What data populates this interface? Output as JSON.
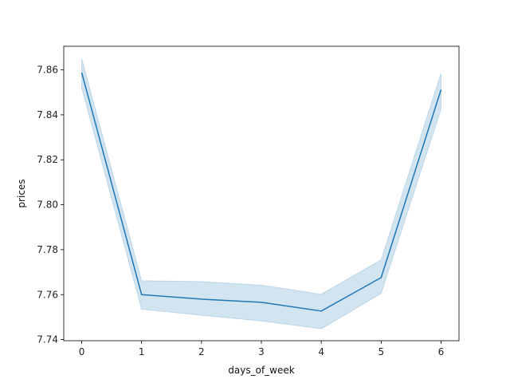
{
  "chart_data": {
    "type": "line",
    "title": "",
    "xlabel": "days_of_week",
    "ylabel": "prices",
    "xlim": [
      -0.3,
      6.3
    ],
    "ylim": [
      7.7395,
      7.8705
    ],
    "xticks": [
      0,
      1,
      2,
      3,
      4,
      5,
      6
    ],
    "yticks": [
      7.74,
      7.76,
      7.78,
      7.8,
      7.82,
      7.84,
      7.86
    ],
    "grid": false,
    "x": [
      0,
      1,
      2,
      3,
      4,
      5,
      6
    ],
    "series": [
      {
        "values": [
          7.8588,
          7.76,
          7.758,
          7.7566,
          7.7527,
          7.7676,
          7.8512
        ],
        "ci_lower": [
          7.852,
          7.7535,
          7.7508,
          7.7483,
          7.7448,
          7.7605,
          7.8425
        ],
        "ci_upper": [
          7.865,
          7.7662,
          7.7658,
          7.7642,
          7.7602,
          7.7755,
          7.8585
        ],
        "color": "#1f77b4"
      }
    ]
  }
}
